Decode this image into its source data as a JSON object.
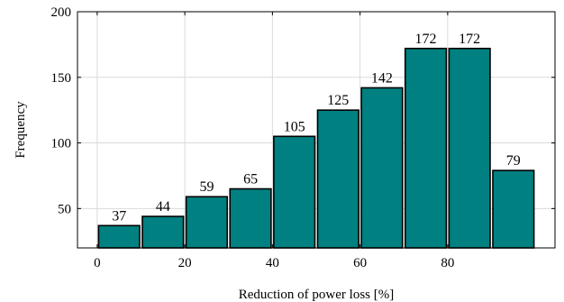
{
  "chart_data": {
    "type": "bar",
    "bars": [
      {
        "x_start": 0,
        "x_end": 10,
        "value": 37
      },
      {
        "x_start": 10,
        "x_end": 20,
        "value": 44
      },
      {
        "x_start": 20,
        "x_end": 30,
        "value": 59
      },
      {
        "x_start": 30,
        "x_end": 40,
        "value": 65
      },
      {
        "x_start": 40,
        "x_end": 50,
        "value": 105
      },
      {
        "x_start": 50,
        "x_end": 60,
        "value": 125
      },
      {
        "x_start": 60,
        "x_end": 70,
        "value": 142
      },
      {
        "x_start": 70,
        "x_end": 80,
        "value": 172
      },
      {
        "x_start": 80,
        "x_end": 90,
        "value": 172
      },
      {
        "x_start": 90,
        "x_end": 100,
        "value": 79
      }
    ],
    "xlabel": "Reduction of power loss [%]",
    "ylabel": "Frequency",
    "xlim": [
      -4.5,
      104.5
    ],
    "ylim": [
      20,
      200
    ],
    "xticks": [
      0,
      20,
      40,
      60,
      80
    ],
    "yticks": [
      50,
      100,
      150,
      200
    ],
    "grid": true,
    "bar_color": "#008080",
    "bar_edge_color": "#000000"
  }
}
